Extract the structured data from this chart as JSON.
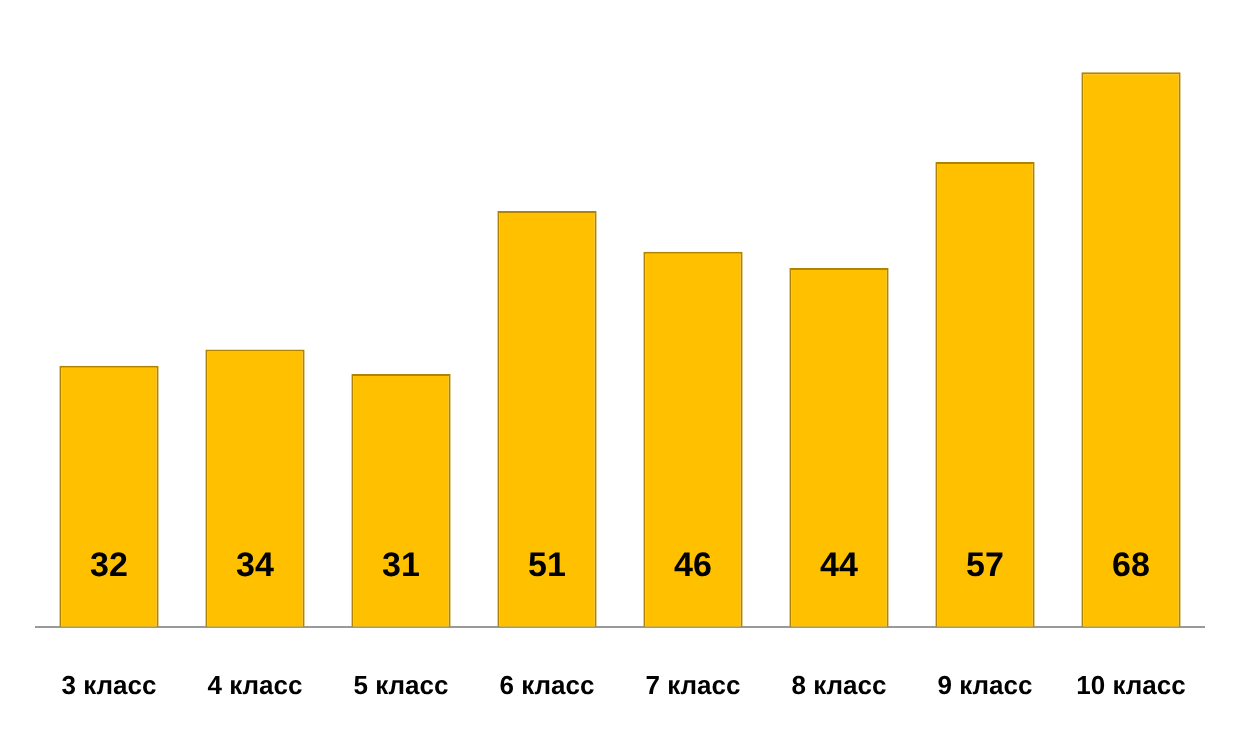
{
  "chart_data": {
    "type": "bar",
    "categories": [
      "3 класс",
      "4 класс",
      "5 класс",
      "6 класс",
      "7 класс",
      "8 класс",
      "9 класс",
      "10 класс"
    ],
    "values": [
      32,
      34,
      31,
      51,
      46,
      44,
      57,
      68
    ],
    "color": "#ffc000",
    "data_labels": true,
    "grid": false,
    "legend": false
  }
}
